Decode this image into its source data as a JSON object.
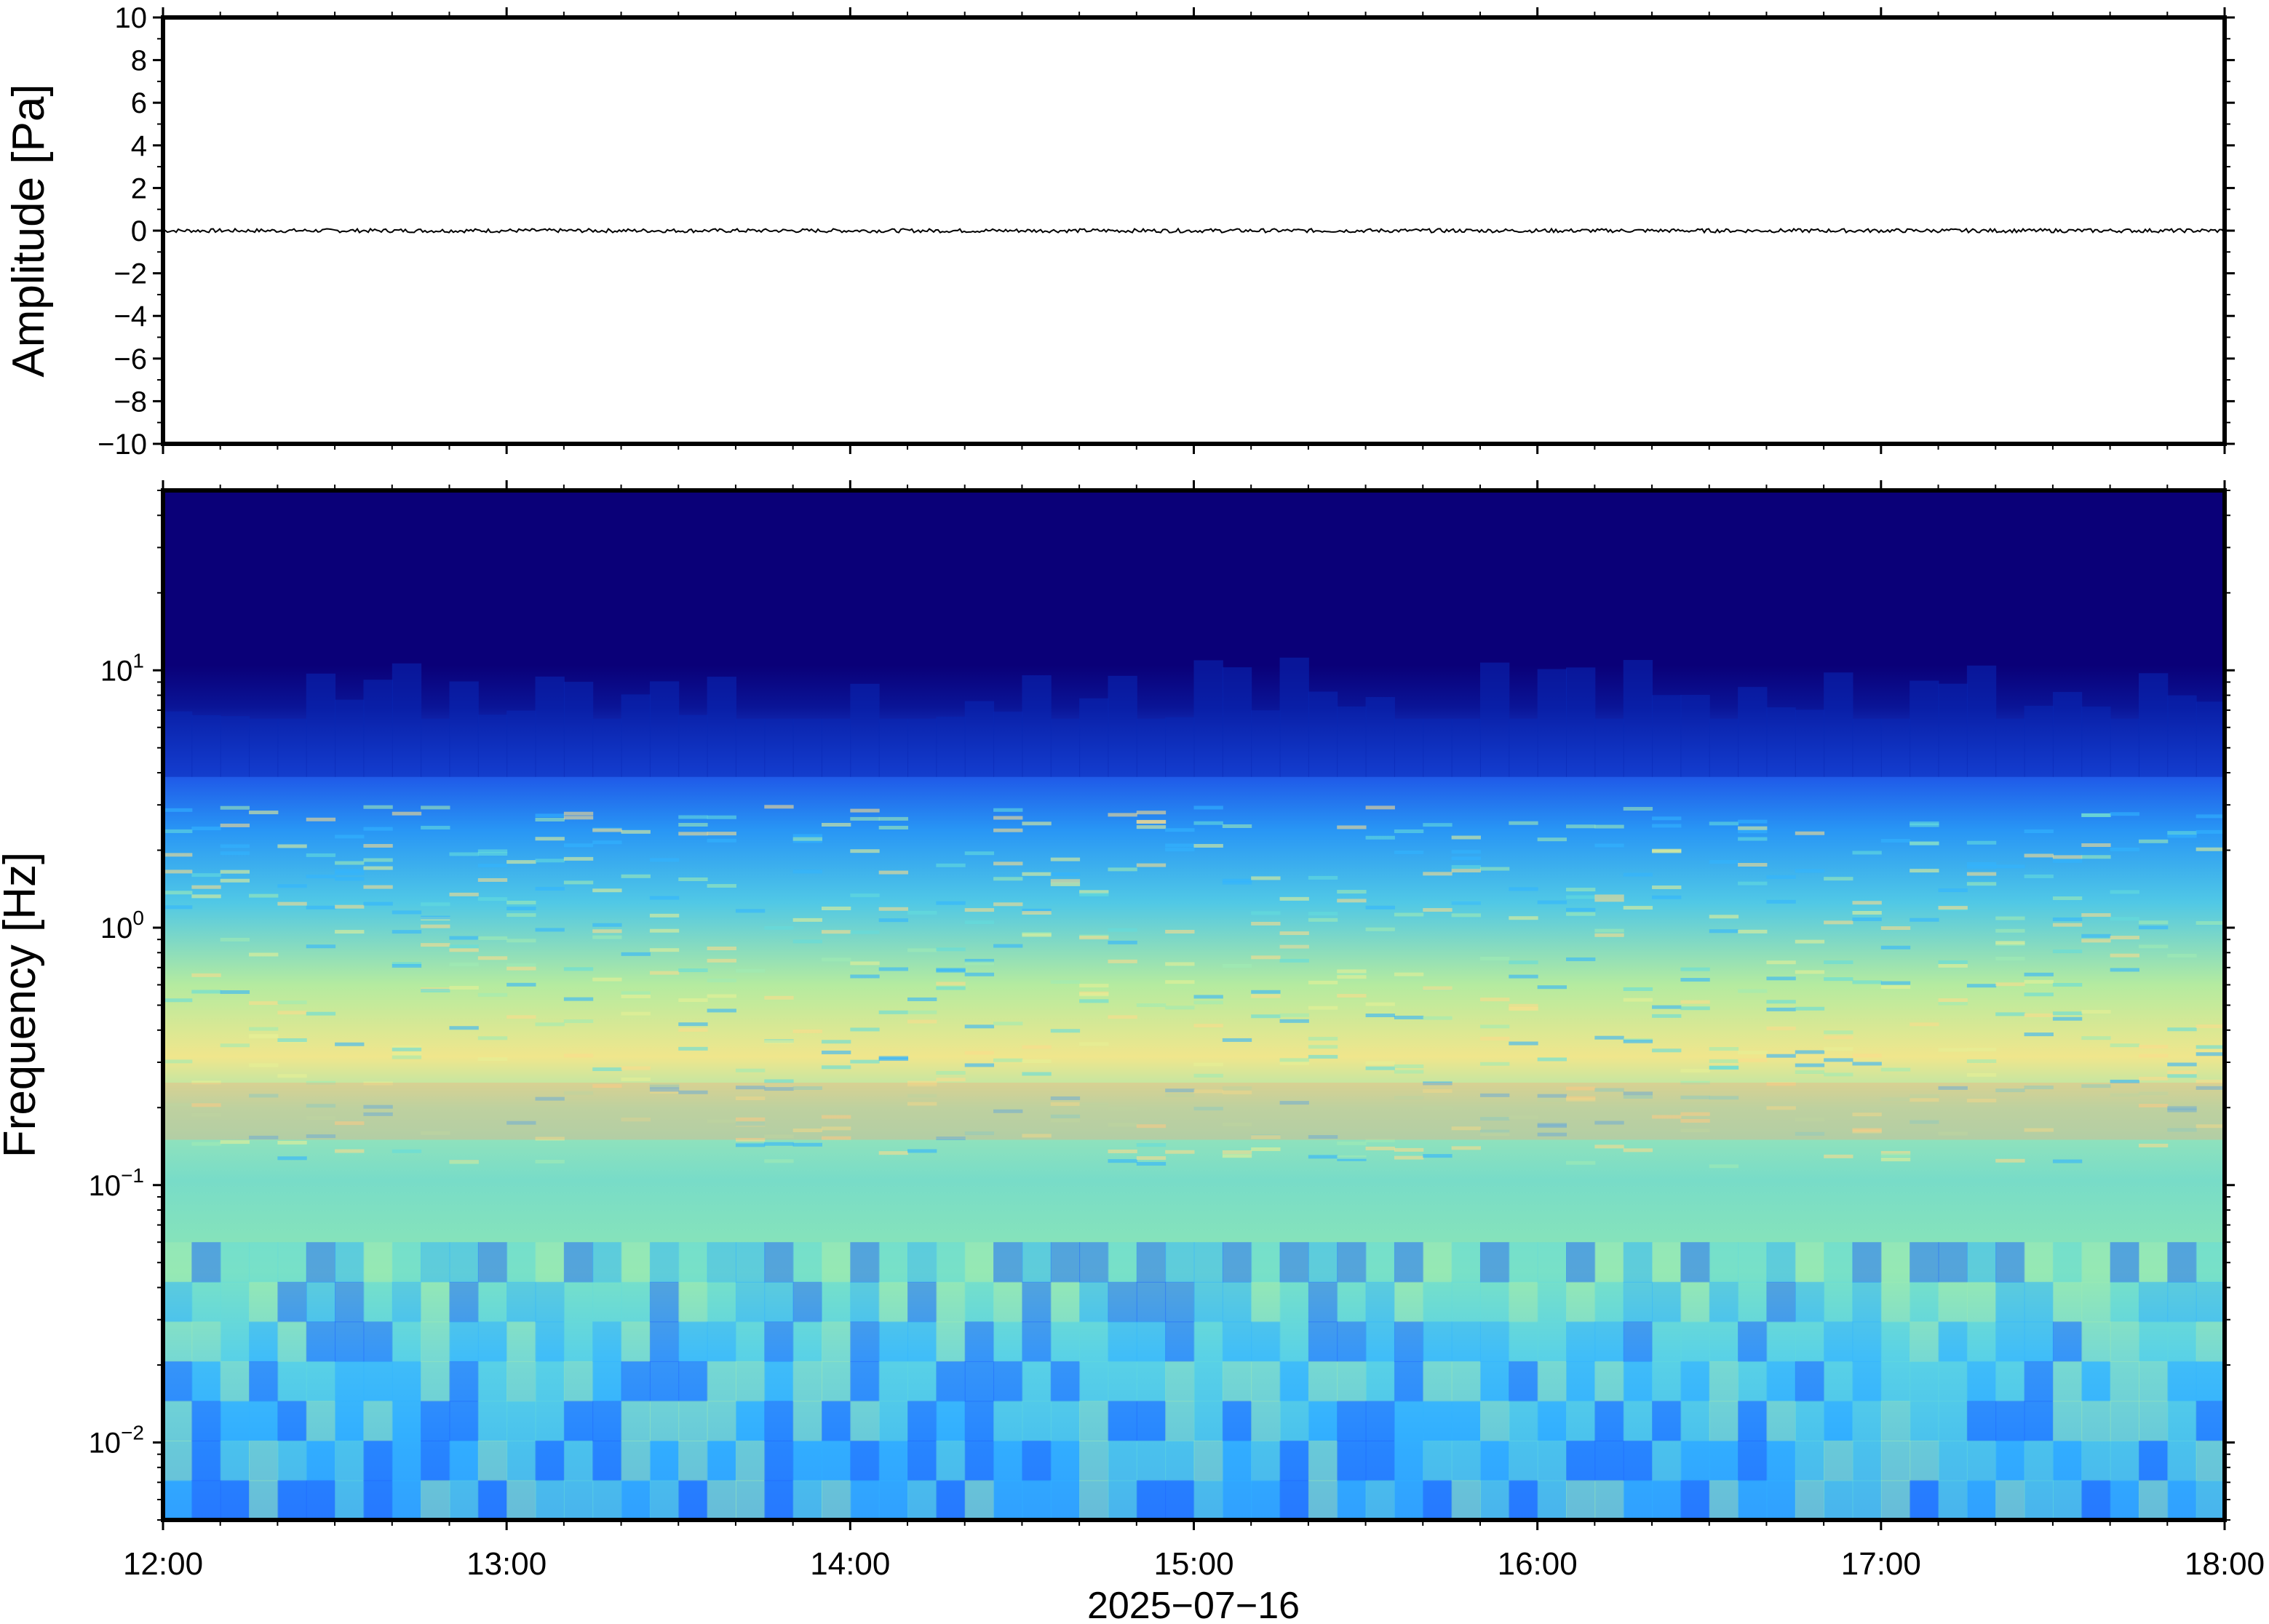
{
  "chart_data": [
    {
      "type": "line",
      "ylabel": "Amplitude [Pa]",
      "ylim": [
        -10,
        10
      ],
      "yticks": [
        {
          "value": 10,
          "label": "10"
        },
        {
          "value": 8,
          "label": "8"
        },
        {
          "value": 6,
          "label": "6"
        },
        {
          "value": 4,
          "label": "4"
        },
        {
          "value": 2,
          "label": "2"
        },
        {
          "value": 0,
          "label": "0"
        },
        {
          "value": -2,
          "label": "−2"
        },
        {
          "value": -4,
          "label": "−4"
        },
        {
          "value": -6,
          "label": "−6"
        },
        {
          "value": -8,
          "label": "−8"
        },
        {
          "value": -10,
          "label": "−10"
        }
      ],
      "xlim": [
        "2025-07-16 12:00",
        "2025-07-16 18:00"
      ],
      "series": [
        {
          "values": "waveform ≈ 0 Pa throughout, peak amplitude ≈ ±0.1 Pa"
        }
      ]
    },
    {
      "type": "heatmap",
      "ylabel": "Frequency [Hz]",
      "xlabel": "2025−07−16",
      "yscale": "log",
      "ylim": [
        0.005,
        50
      ],
      "yticks": [
        {
          "value": 10,
          "base": "10",
          "exp": "1"
        },
        {
          "value": 1,
          "base": "10",
          "exp": "0"
        },
        {
          "value": 0.1,
          "base": "10",
          "exp": "−1"
        },
        {
          "value": 0.01,
          "base": "10",
          "exp": "−2"
        }
      ],
      "xticks": [
        "12:00",
        "13:00",
        "14:00",
        "15:00",
        "16:00",
        "17:00",
        "18:00"
      ],
      "xlim": [
        "12:00",
        "18:00"
      ],
      "colormap": [
        "#0a0078",
        "#0a1ec8",
        "#1e64ff",
        "#32b4ff",
        "#64dcdc",
        "#a0ebb4",
        "#e6f096",
        "#fadc8c",
        "#f5aa78"
      ],
      "features": {
        "noise_floor_above_hz": 5,
        "peak_band_hz": [
          0.15,
          0.25
        ],
        "peak_color": "#f5aa78"
      }
    }
  ]
}
